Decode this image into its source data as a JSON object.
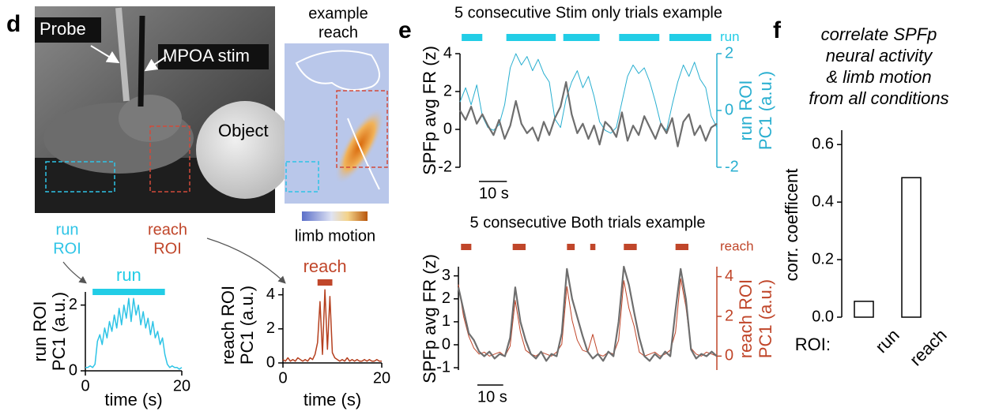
{
  "figure": {
    "panel_labels": [
      "d",
      "e",
      "f"
    ],
    "photo_labels": [
      "Probe",
      "MPOA stim",
      "Object"
    ],
    "inset_title": [
      "example",
      "reach"
    ],
    "colorbar_label": "limb motion",
    "roi_labels": [
      [
        "run",
        "ROI"
      ],
      [
        "reach",
        "ROI"
      ]
    ],
    "f_text": [
      "correlate SPFp",
      "neural activity",
      "& limb motion",
      "from all conditions"
    ]
  },
  "chart_data": [
    {
      "type": "line",
      "color": "#2ec4e6",
      "x": [
        0,
        0.5,
        1,
        1.5,
        2,
        2.5,
        3,
        3.5,
        4,
        4.5,
        5,
        5.5,
        6,
        6.5,
        7,
        7.5,
        8,
        8.5,
        9,
        9.5,
        10,
        10.5,
        11,
        11.5,
        12,
        12.5,
        13,
        13.5,
        14,
        14.5,
        15,
        15.5,
        16,
        16.5,
        17,
        17.5,
        18,
        18.5,
        19,
        19.5,
        20
      ],
      "values": [
        0.1,
        0.1,
        0.15,
        0.1,
        0.2,
        0.9,
        1.1,
        0.8,
        1.3,
        1.0,
        1.5,
        1.2,
        1.7,
        1.3,
        1.9,
        1.4,
        2.0,
        1.6,
        2.2,
        1.5,
        2.2,
        1.7,
        2.0,
        1.4,
        1.8,
        1.3,
        1.6,
        1.1,
        1.5,
        1.0,
        1.2,
        0.8,
        1.0,
        0.5,
        0.2,
        0.1,
        0.15,
        0.1,
        0.1,
        0.05,
        0.1
      ],
      "xlim": [
        0,
        20
      ],
      "xticks": [
        0,
        20
      ],
      "ylim": [
        0,
        2.4
      ],
      "yticks": [
        0,
        2
      ],
      "xlabel": "time (s)",
      "ylabel": [
        "run ROI",
        "PC1 (a.u.)"
      ],
      "events": [
        {
          "label": "run",
          "color": "#22cde6",
          "intervals": [
            [
              1.5,
              16.5
            ]
          ]
        }
      ]
    },
    {
      "type": "line",
      "color": "#b5401f",
      "x": [
        0,
        0.5,
        1,
        1.5,
        2,
        2.5,
        3,
        3.5,
        4,
        4.5,
        5,
        5.5,
        6,
        6.5,
        7,
        7.5,
        8,
        8.5,
        9,
        9.5,
        10,
        10.5,
        11,
        11.5,
        12,
        12.5,
        13,
        13.5,
        14,
        14.5,
        15,
        15.5,
        16,
        16.5,
        17,
        17.5,
        18,
        18.5,
        19,
        19.5,
        20
      ],
      "values": [
        0.2,
        0.1,
        0.3,
        0.1,
        0.2,
        0.1,
        0.3,
        0.2,
        0.1,
        0.2,
        0.1,
        0.3,
        0.2,
        0.5,
        1.2,
        3.6,
        0.5,
        4.3,
        0.8,
        3.9,
        0.6,
        0.3,
        0.2,
        0.1,
        0.2,
        0.1,
        0.3,
        0.1,
        0.2,
        0.1,
        0.2,
        0.1,
        0.1,
        0.2,
        0.1,
        0.2,
        0.1,
        0.1,
        0.2,
        0.1,
        0.1
      ],
      "xlim": [
        0,
        20
      ],
      "xticks": [
        0,
        20
      ],
      "ylim": [
        0,
        4.4
      ],
      "yticks": [
        0,
        2,
        4
      ],
      "xlabel": "time (s)",
      "ylabel": [
        "reach ROI",
        "PC1 (a.u.)"
      ],
      "events": [
        {
          "label": "reach",
          "color": "#c0462a",
          "intervals": [
            [
              7,
              10
            ]
          ]
        }
      ]
    },
    {
      "type": "line",
      "title": "5 consecutive Stim only trials example",
      "x": [
        0,
        2,
        4,
        6,
        8,
        10,
        12,
        14,
        16,
        18,
        20,
        22,
        24,
        26,
        28,
        30,
        32,
        34,
        36,
        38,
        40,
        42,
        44,
        46,
        48,
        50,
        52,
        54,
        56,
        58,
        60,
        62,
        64,
        66,
        68,
        70,
        72,
        74,
        76,
        78,
        80,
        82,
        84,
        86,
        88,
        90,
        92
      ],
      "series": [
        {
          "color": "#29afd0",
          "axis": "y2",
          "values": [
            0.3,
            0.8,
            0.2,
            0.9,
            -0.2,
            -0.6,
            -0.7,
            -0.5,
            0.2,
            1.5,
            2.0,
            1.6,
            1.9,
            1.4,
            1.8,
            1.3,
            1.0,
            -0.3,
            -0.6,
            0.4,
            1.0,
            1.4,
            0.8,
            1.2,
            0.5,
            -0.4,
            -0.7,
            -0.8,
            -0.6,
            0.3,
            1.2,
            1.6,
            1.3,
            1.5,
            1.0,
            0.3,
            -0.5,
            -0.7,
            0.2,
            1.0,
            1.6,
            1.2,
            1.7,
            1.1,
            0.8,
            -0.2,
            -0.6
          ]
        },
        {
          "color": "#6e6e6e",
          "values": [
            1.0,
            0.5,
            1.2,
            0.3,
            0.8,
            0.2,
            -0.3,
            0.5,
            -0.5,
            0.2,
            1.5,
            0.3,
            -0.2,
            0.1,
            -0.6,
            0.4,
            -0.3,
            0.6,
            1.2,
            2.5,
            0.8,
            -0.2,
            0.3,
            -0.5,
            0.2,
            -0.8,
            0.4,
            0.1,
            -0.4,
            0.9,
            -0.6,
            0.2,
            -0.3,
            0.7,
            0.1,
            -0.5,
            0.3,
            -0.2,
            0.6,
            -0.9,
            0.4,
            0.8,
            -0.3,
            0.2,
            -0.6,
            0.1,
            0.3
          ]
        }
      ],
      "xlim": [
        0,
        92
      ],
      "ylim": [
        -2,
        4
      ],
      "yticks": [
        -2,
        0,
        2,
        4
      ],
      "y2lim": [
        -2,
        2
      ],
      "y2ticks": [
        -2,
        0,
        2
      ],
      "ylabel": [
        "SPFp avg FR (z)"
      ],
      "y2label": [
        "run ROI",
        "PC1 (a.u.)"
      ],
      "scale_bar": {
        "value": 10,
        "label": "10 s"
      },
      "events": [
        {
          "label": "run",
          "color": "#22cde6",
          "intervals": [
            [
              0.6,
              8
            ],
            [
              16.6,
              34.3
            ],
            [
              37,
              50
            ],
            [
              57,
              71.4
            ],
            [
              75,
              90
            ]
          ]
        }
      ]
    },
    {
      "type": "line",
      "title": "5 consecutive Both trials example",
      "x": [
        0,
        2,
        4,
        6,
        8,
        10,
        12,
        14,
        16,
        18,
        20,
        22,
        24,
        26,
        28,
        30,
        32,
        34,
        36,
        38,
        40,
        42,
        44,
        46,
        48,
        50,
        52,
        54,
        56,
        58,
        60,
        62,
        64,
        66,
        68,
        70,
        72,
        74,
        76,
        78,
        80,
        82,
        84,
        86,
        88,
        90,
        92,
        94,
        96,
        98,
        100
      ],
      "series": [
        {
          "color": "#c0462a",
          "axis": "y2",
          "values": [
            3.6,
            2.0,
            1.0,
            0.4,
            0.1,
            0.2,
            0.0,
            0.1,
            0.2,
            0.0,
            0.5,
            2.8,
            1.2,
            0.3,
            0.1,
            0.0,
            0.2,
            0.1,
            0.0,
            0.2,
            0.6,
            3.5,
            1.8,
            0.8,
            0.3,
            0.2,
            1.1,
            0.1,
            0.0,
            0.2,
            0.1,
            0.8,
            3.8,
            2.4,
            1.5,
            0.2,
            0.0,
            0.1,
            0.2,
            0.0,
            0.1,
            0.3,
            1.2,
            3.9,
            2.5,
            0.4,
            0.1,
            0.0,
            0.2,
            0.1,
            0.0
          ]
        },
        {
          "color": "#6e6e6e",
          "values": [
            2.5,
            1.5,
            0.5,
            0.2,
            -0.3,
            -0.5,
            -0.3,
            -0.6,
            -0.4,
            -0.5,
            0.3,
            2.5,
            1.0,
            0.2,
            -0.4,
            -0.6,
            -0.3,
            -0.7,
            -0.4,
            -0.5,
            0.5,
            3.3,
            2.0,
            1.2,
            0.4,
            -0.3,
            -0.6,
            -0.4,
            -0.7,
            -0.3,
            -0.5,
            1.0,
            3.4,
            2.6,
            1.4,
            0.3,
            -0.5,
            -0.7,
            -0.4,
            -0.6,
            -0.3,
            -0.5,
            1.5,
            3.3,
            2.0,
            -0.2,
            -0.6,
            -0.4,
            -0.5,
            -0.3,
            -0.5
          ]
        }
      ],
      "xlim": [
        0,
        100
      ],
      "ylim": [
        -1.1,
        3.4
      ],
      "yticks": [
        -1,
        0,
        1,
        2,
        3
      ],
      "y2lim": [
        -0.7,
        4.5
      ],
      "y2ticks": [
        0,
        2,
        4
      ],
      "ylabel": [
        "SPFp avg FR (z)"
      ],
      "y2label": [
        "reach ROI",
        "PC1 (a.u.)"
      ],
      "scale_bar": {
        "value": 10,
        "label": "10 s"
      },
      "events": [
        {
          "label": "reach",
          "color": "#c0462a",
          "intervals": [
            [
              1,
              5
            ],
            [
              21,
              26
            ],
            [
              42,
              45
            ],
            [
              51,
              53
            ],
            [
              64,
              69
            ],
            [
              84,
              89
            ]
          ]
        }
      ]
    },
    {
      "type": "bar",
      "categories": [
        "run",
        "reach"
      ],
      "values": [
        0.055,
        0.485
      ],
      "ylim": [
        0,
        0.65
      ],
      "yticks": [
        {
          "value": 0,
          "label": "0.0"
        },
        0.2,
        0.4,
        0.6
      ],
      "ylabel": [
        "corr. coefficent"
      ],
      "xlabel": "ROI:",
      "color": "#ffffff",
      "edge_color": "#000000"
    }
  ]
}
